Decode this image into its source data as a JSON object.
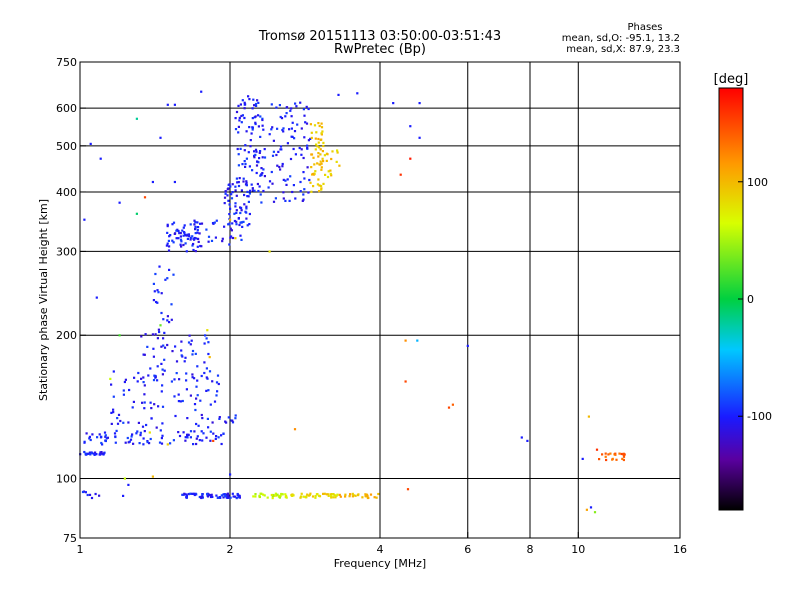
{
  "chart_data": {
    "type": "scatter",
    "title": "Tromsø 20151113 03:50:00-03:51:43",
    "subtitle": "RwPretec (Bp)",
    "xlabel": "Frequency [MHz]",
    "ylabel": "Stationary phase Virtual Height [km]",
    "x_scale": "log",
    "y_scale": "log",
    "xlim": [
      1,
      16
    ],
    "ylim": [
      75,
      750
    ],
    "x_ticks": [
      1,
      2,
      4,
      6,
      8,
      10,
      16
    ],
    "y_ticks": [
      75,
      100,
      200,
      300,
      400,
      500,
      600,
      750
    ],
    "grid": true,
    "stats": {
      "heading": "Phases",
      "line_o": "mean, sd,O: -95.1, 13.2",
      "line_x": "mean, sd,X:  87.9, 23.3"
    },
    "colorbar": {
      "label": "[deg]",
      "range": [
        -180,
        180
      ],
      "ticks": [
        100,
        0,
        -100
      ]
    },
    "clusters": [
      {
        "shape": "band",
        "x0": 1.0,
        "x1": 1.12,
        "y0": 112,
        "y1": 114,
        "phase": -100,
        "count": 28
      },
      {
        "shape": "rect",
        "x0": 1.02,
        "x1": 1.15,
        "y0": 117,
        "y1": 125,
        "phase": -100,
        "count": 18
      },
      {
        "shape": "rect",
        "x0": 1.1,
        "x1": 1.95,
        "y0": 118,
        "y1": 126,
        "phase": -100,
        "count": 60
      },
      {
        "shape": "rect",
        "x0": 1.15,
        "x1": 1.9,
        "y0": 125,
        "y1": 170,
        "phase": -100,
        "count": 95
      },
      {
        "shape": "rect",
        "x0": 1.3,
        "x1": 1.85,
        "y0": 160,
        "y1": 205,
        "phase": -100,
        "count": 55
      },
      {
        "shape": "rect",
        "x0": 1.4,
        "x1": 1.55,
        "y0": 200,
        "y1": 290,
        "phase": -100,
        "count": 25
      },
      {
        "shape": "band",
        "x0": 1.9,
        "x1": 2.1,
        "y0": 130,
        "y1": 136,
        "phase": -100,
        "count": 10
      },
      {
        "shape": "rect",
        "x0": 1.48,
        "x1": 1.75,
        "y0": 300,
        "y1": 345,
        "phase": -100,
        "count": 55
      },
      {
        "shape": "band",
        "x0": 1.55,
        "x1": 2.15,
        "y0": 305,
        "y1": 350,
        "phase": -100,
        "count": 45
      },
      {
        "shape": "rect",
        "x0": 1.95,
        "x1": 2.2,
        "y0": 340,
        "y1": 420,
        "phase": -100,
        "count": 60
      },
      {
        "shape": "rect",
        "x0": 2.05,
        "x1": 2.3,
        "y0": 400,
        "y1": 640,
        "phase": -100,
        "count": 80
      },
      {
        "shape": "rect",
        "x0": 2.25,
        "x1": 2.9,
        "y0": 380,
        "y1": 620,
        "phase": -100,
        "count": 120
      },
      {
        "shape": "rect",
        "x0": 2.9,
        "x1": 3.1,
        "y0": 400,
        "y1": 560,
        "phase": 95,
        "count": 60
      },
      {
        "shape": "rect",
        "x0": 3.1,
        "x1": 3.35,
        "y0": 430,
        "y1": 490,
        "phase": 90,
        "count": 15
      },
      {
        "shape": "band",
        "x0": 1.6,
        "x1": 2.1,
        "y0": 91,
        "y1": 93,
        "phase": -100,
        "count": 70
      },
      {
        "shape": "band",
        "x0": 2.2,
        "x1": 2.6,
        "y0": 91,
        "y1": 93,
        "phase": 60,
        "count": 30
      },
      {
        "shape": "band",
        "x0": 2.6,
        "x1": 3.3,
        "y0": 91,
        "y1": 93,
        "phase": 85,
        "count": 40
      },
      {
        "shape": "band",
        "x0": 3.3,
        "x1": 4.0,
        "y0": 91,
        "y1": 93,
        "phase": 100,
        "count": 25
      },
      {
        "shape": "band",
        "x0": 1.0,
        "x1": 1.1,
        "y0": 91,
        "y1": 94,
        "phase": -100,
        "count": 8
      },
      {
        "shape": "rect",
        "x0": 11.0,
        "x1": 12.4,
        "y0": 109,
        "y1": 113,
        "phase": 140,
        "count": 22
      }
    ],
    "points": [
      {
        "x": 1.05,
        "y": 505,
        "phase": -100
      },
      {
        "x": 1.1,
        "y": 470,
        "phase": -100
      },
      {
        "x": 1.08,
        "y": 240,
        "phase": -100
      },
      {
        "x": 1.2,
        "y": 380,
        "phase": -100
      },
      {
        "x": 1.3,
        "y": 570,
        "phase": -20
      },
      {
        "x": 1.4,
        "y": 420,
        "phase": -100
      },
      {
        "x": 1.45,
        "y": 520,
        "phase": -100
      },
      {
        "x": 1.5,
        "y": 610,
        "phase": -100
      },
      {
        "x": 1.55,
        "y": 610,
        "phase": -100
      },
      {
        "x": 1.75,
        "y": 650,
        "phase": -100
      },
      {
        "x": 1.35,
        "y": 390,
        "phase": 150
      },
      {
        "x": 1.55,
        "y": 420,
        "phase": -100
      },
      {
        "x": 1.02,
        "y": 350,
        "phase": -100
      },
      {
        "x": 1.3,
        "y": 360,
        "phase": -10
      },
      {
        "x": 4.6,
        "y": 470,
        "phase": 170
      },
      {
        "x": 4.4,
        "y": 435,
        "phase": 160
      },
      {
        "x": 4.6,
        "y": 550,
        "phase": -100
      },
      {
        "x": 4.8,
        "y": 520,
        "phase": -100
      },
      {
        "x": 4.8,
        "y": 615,
        "phase": -100
      },
      {
        "x": 4.25,
        "y": 615,
        "phase": -100
      },
      {
        "x": 3.6,
        "y": 645,
        "phase": -100
      },
      {
        "x": 3.3,
        "y": 640,
        "phase": -100
      },
      {
        "x": 2.4,
        "y": 300,
        "phase": 80
      },
      {
        "x": 4.5,
        "y": 195,
        "phase": 120
      },
      {
        "x": 4.5,
        "y": 160,
        "phase": 150
      },
      {
        "x": 4.75,
        "y": 195,
        "phase": -50
      },
      {
        "x": 6.0,
        "y": 190,
        "phase": -100
      },
      {
        "x": 5.6,
        "y": 143,
        "phase": 140
      },
      {
        "x": 5.5,
        "y": 141,
        "phase": 150
      },
      {
        "x": 7.7,
        "y": 122,
        "phase": -100
      },
      {
        "x": 7.9,
        "y": 120,
        "phase": -100
      },
      {
        "x": 2.7,
        "y": 127,
        "phase": 120
      },
      {
        "x": 4.55,
        "y": 95,
        "phase": 150
      },
      {
        "x": 2.0,
        "y": 102,
        "phase": -100
      },
      {
        "x": 1.23,
        "y": 100,
        "phase": 60
      },
      {
        "x": 1.25,
        "y": 97,
        "phase": -100
      },
      {
        "x": 1.22,
        "y": 92,
        "phase": -100
      },
      {
        "x": 1.4,
        "y": 101,
        "phase": 100
      },
      {
        "x": 1.8,
        "y": 205,
        "phase": 80
      },
      {
        "x": 1.82,
        "y": 180,
        "phase": 100
      },
      {
        "x": 1.85,
        "y": 120,
        "phase": 150
      },
      {
        "x": 1.5,
        "y": 118,
        "phase": 90
      },
      {
        "x": 1.38,
        "y": 125,
        "phase": 80
      },
      {
        "x": 1.15,
        "y": 162,
        "phase": 60
      },
      {
        "x": 1.2,
        "y": 200,
        "phase": 20
      },
      {
        "x": 1.45,
        "y": 210,
        "phase": 30
      },
      {
        "x": 2.05,
        "y": 320,
        "phase": 90
      },
      {
        "x": 2.0,
        "y": 350,
        "phase": 100
      },
      {
        "x": 10.4,
        "y": 86,
        "phase": 110
      },
      {
        "x": 10.6,
        "y": 87,
        "phase": -100
      },
      {
        "x": 10.8,
        "y": 85,
        "phase": 40
      },
      {
        "x": 10.5,
        "y": 135,
        "phase": 100
      },
      {
        "x": 10.2,
        "y": 110,
        "phase": -100
      },
      {
        "x": 10.9,
        "y": 115,
        "phase": 160
      }
    ]
  }
}
